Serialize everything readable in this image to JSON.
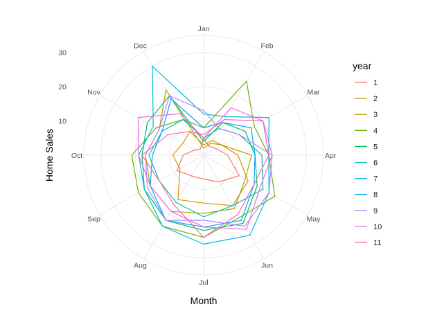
{
  "chart_data": {
    "type": "line",
    "coord": "polar",
    "xlabel": "Month",
    "ylabel": "Home Sales",
    "categories": [
      "Jan",
      "Feb",
      "Mar",
      "Apr",
      "May",
      "Jun",
      "Jul",
      "Aug",
      "Sep",
      "Oct",
      "Nov",
      "Dec"
    ],
    "y_ticks": [
      10,
      20,
      30
    ],
    "ylim": [
      0,
      35
    ],
    "grid": true,
    "legend_title": "year",
    "legend_position": "right",
    "series": [
      {
        "name": "1",
        "color": "#F8766D",
        "values": [
          5,
          3,
          4,
          7,
          12,
          9,
          7,
          7,
          9,
          6,
          3,
          2
        ]
      },
      {
        "name": "2",
        "color": "#DB8E00",
        "values": [
          3,
          5,
          6,
          10,
          15,
          17,
          14,
          15,
          8,
          9,
          7,
          8
        ]
      },
      {
        "name": "3",
        "color": "#AEA200",
        "values": [
          2,
          4,
          6,
          14,
          14,
          18,
          17,
          19,
          18,
          17,
          15,
          22
        ]
      },
      {
        "name": "4",
        "color": "#64B200",
        "values": [
          8,
          25,
          17,
          19,
          24,
          21,
          24,
          24,
          22,
          21,
          16,
          12
        ]
      },
      {
        "name": "5",
        "color": "#00BD5C",
        "values": [
          4,
          11,
          14,
          15,
          18,
          23,
          22,
          22,
          20,
          18,
          19,
          20
        ]
      },
      {
        "name": "6",
        "color": "#00C1A7",
        "values": [
          5,
          9,
          12,
          17,
          20,
          17,
          18,
          16,
          15,
          16,
          14,
          12
        ]
      },
      {
        "name": "7",
        "color": "#00BADE",
        "values": [
          12,
          13,
          22,
          19,
          22,
          27,
          26,
          24,
          20,
          19,
          17,
          30
        ]
      },
      {
        "name": "8",
        "color": "#00A6FF",
        "values": [
          8,
          11,
          16,
          15,
          17,
          22,
          21,
          22,
          18,
          15,
          14,
          19
        ]
      },
      {
        "name": "9",
        "color": "#B385FF",
        "values": [
          13,
          9,
          12,
          20,
          22,
          24,
          19,
          22,
          19,
          17,
          15,
          20
        ]
      },
      {
        "name": "10",
        "color": "#EF67EB",
        "values": [
          5,
          16,
          20,
          20,
          19,
          25,
          21,
          19,
          18,
          19,
          22,
          14
        ]
      },
      {
        "name": "11",
        "color": "#FF63B6",
        "values": [
          6,
          12,
          20,
          19,
          17,
          20,
          24,
          17,
          15,
          18,
          12,
          8
        ]
      }
    ]
  }
}
